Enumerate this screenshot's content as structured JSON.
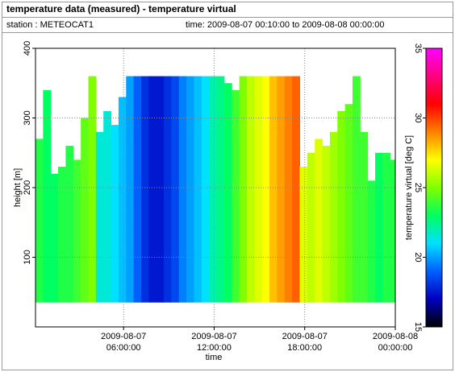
{
  "chart_data": {
    "type": "heatmap",
    "title": "temperature data (measured) - temperature virtual",
    "station": "station : METEOCAT1",
    "time_range": "time: 2009-08-07 00:10:00 to 2009-08-08 00:00:00",
    "xlabel": "time",
    "ylabel": "height [m]",
    "colorbar_label": "temperature virtual [deg C]",
    "x": [
      "2009-08-07 00:10:00",
      "2009-08-07 00:40:00",
      "2009-08-07 01:10:00",
      "2009-08-07 01:40:00",
      "2009-08-07 02:10:00",
      "2009-08-07 02:40:00",
      "2009-08-07 03:10:00",
      "2009-08-07 03:40:00",
      "2009-08-07 04:10:00",
      "2009-08-07 04:40:00",
      "2009-08-07 05:10:00",
      "2009-08-07 05:40:00",
      "2009-08-07 06:10:00",
      "2009-08-07 06:40:00",
      "2009-08-07 07:10:00",
      "2009-08-07 07:40:00",
      "2009-08-07 08:10:00",
      "2009-08-07 08:40:00",
      "2009-08-07 09:10:00",
      "2009-08-07 09:40:00",
      "2009-08-07 10:10:00",
      "2009-08-07 10:40:00",
      "2009-08-07 11:10:00",
      "2009-08-07 11:40:00",
      "2009-08-07 12:10:00",
      "2009-08-07 12:40:00",
      "2009-08-07 13:10:00",
      "2009-08-07 13:40:00",
      "2009-08-07 14:10:00",
      "2009-08-07 14:40:00",
      "2009-08-07 15:10:00",
      "2009-08-07 15:40:00",
      "2009-08-07 16:10:00",
      "2009-08-07 16:40:00",
      "2009-08-07 17:10:00",
      "2009-08-07 17:40:00",
      "2009-08-07 18:10:00",
      "2009-08-07 18:40:00",
      "2009-08-07 19:10:00",
      "2009-08-07 19:40:00",
      "2009-08-07 20:10:00",
      "2009-08-07 20:40:00",
      "2009-08-07 21:10:00",
      "2009-08-07 21:40:00",
      "2009-08-07 22:10:00",
      "2009-08-07 22:40:00",
      "2009-08-07 23:10:00",
      "2009-08-07 23:40:00"
    ],
    "values": [
      23.5,
      23,
      23,
      23.5,
      23.5,
      24,
      24.5,
      25,
      21.5,
      21.5,
      21,
      20.5,
      20,
      19,
      18,
      17.5,
      17.5,
      18,
      18.5,
      19.5,
      20,
      20.5,
      21,
      22,
      22.5,
      23,
      24,
      25,
      26,
      26.5,
      27,
      28,
      28.5,
      29,
      29.5,
      26.5,
      26,
      26.5,
      26,
      25.5,
      25,
      24.5,
      24,
      24,
      23.5,
      23,
      23.5,
      23.5
    ],
    "heights": [
      270,
      340,
      220,
      230,
      260,
      240,
      300,
      360,
      280,
      310,
      290,
      330,
      360,
      360,
      360,
      360,
      360,
      360,
      360,
      360,
      360,
      360,
      360,
      360,
      360,
      350,
      340,
      360,
      360,
      360,
      360,
      360,
      360,
      360,
      360,
      230,
      250,
      270,
      260,
      280,
      310,
      320,
      360,
      280,
      210,
      250,
      250,
      240
    ],
    "base_height": 35,
    "xlim": [
      "2009-08-07 00:10:00",
      "2009-08-08 00:00:00"
    ],
    "xticks": [
      {
        "value": "2009-08-07 06:00:00",
        "label": "2009-08-07 06:00:00"
      },
      {
        "value": "2009-08-07 12:00:00",
        "label": "2009-08-07 12:00:00"
      },
      {
        "value": "2009-08-07 18:00:00",
        "label": "2009-08-07 18:00:00"
      },
      {
        "value": "2009-08-08 00:00:00",
        "label": "2009-08-08 00:00:00"
      }
    ],
    "ylim": [
      0,
      400
    ],
    "yticks": [
      100,
      200,
      300,
      400
    ],
    "clim": [
      15,
      35
    ],
    "cticks": [
      15,
      20,
      25,
      30,
      35
    ],
    "colormap": [
      "#000000",
      "#0000c0",
      "#0060ff",
      "#00e0ff",
      "#00ff60",
      "#80ff00",
      "#ffff00",
      "#ff8000",
      "#ff0000",
      "#ff0080",
      "#ff00ff"
    ],
    "grid": true
  }
}
